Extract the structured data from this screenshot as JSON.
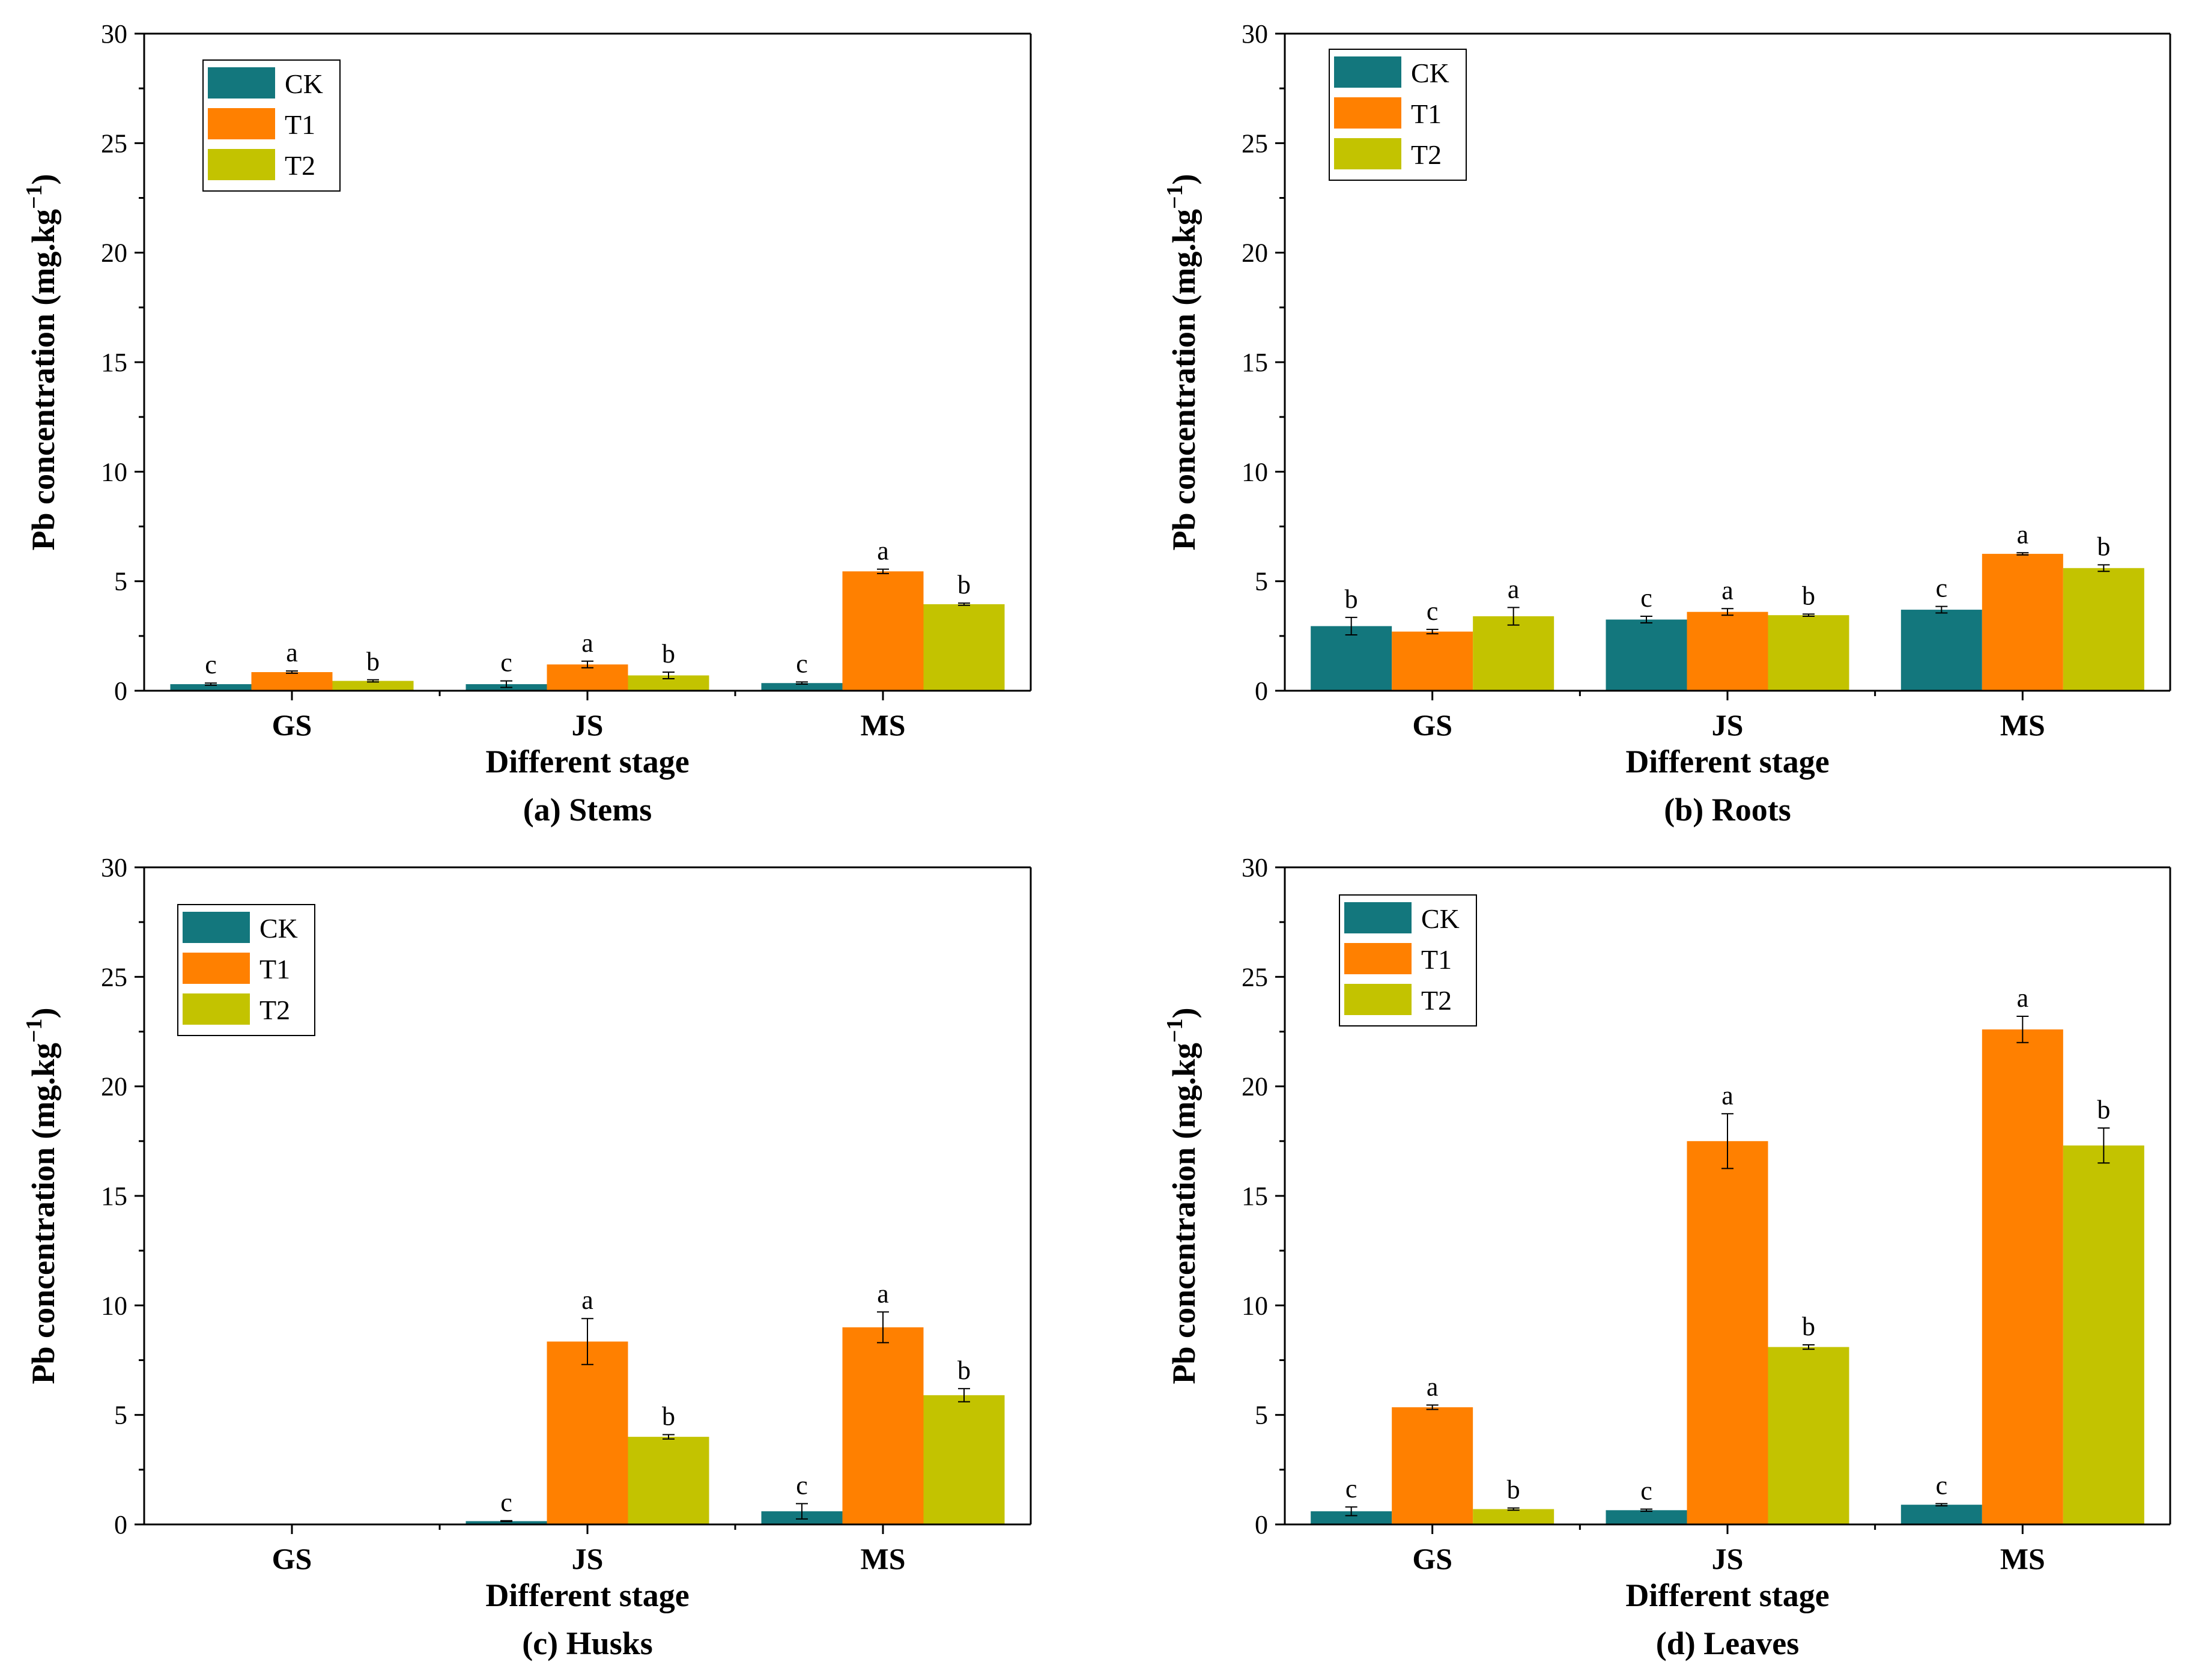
{
  "colors": {
    "CK": "#13777d",
    "T1": "#ff8000",
    "T2": "#c3c300"
  },
  "chart_data": [
    {
      "type": "bar",
      "title": "(a) Stems",
      "xlabel": "Different stage",
      "ylabel": "Pb concentration (mg.kg",
      "ylabel_sup": "−1",
      "ylabel_close": ")",
      "ylim": [
        0,
        30
      ],
      "yticks": [
        "0",
        "5",
        "10",
        "15",
        "20",
        "25",
        "30"
      ],
      "categories": [
        "GS",
        "JS",
        "MS"
      ],
      "legend": {
        "position": "top-left",
        "entries": [
          "CK",
          "T1",
          "T2"
        ]
      },
      "series": [
        {
          "name": "CK",
          "values": [
            0.3,
            0.3,
            0.35
          ],
          "errors": [
            0.05,
            0.15,
            0.05
          ],
          "letters": [
            "c",
            "c",
            "c"
          ]
        },
        {
          "name": "T1",
          "values": [
            0.85,
            1.2,
            5.45
          ],
          "errors": [
            0.05,
            0.15,
            0.1
          ],
          "letters": [
            "a",
            "a",
            "a"
          ]
        },
        {
          "name": "T2",
          "values": [
            0.45,
            0.7,
            3.95
          ],
          "errors": [
            0.05,
            0.15,
            0.05
          ],
          "letters": [
            "b",
            "b",
            "b"
          ]
        }
      ]
    },
    {
      "type": "bar",
      "title": "(b) Roots",
      "xlabel": "Different stage",
      "ylabel": "Pb concentration (mg.kg",
      "ylabel_sup": "−1",
      "ylabel_close": ")",
      "ylim": [
        0,
        30
      ],
      "yticks": [
        "0",
        "5",
        "10",
        "15",
        "20",
        "25",
        "30"
      ],
      "categories": [
        "GS",
        "JS",
        "MS"
      ],
      "legend": {
        "position": "top-left",
        "entries": [
          "CK",
          "T1",
          "T2"
        ]
      },
      "series": [
        {
          "name": "CK",
          "values": [
            2.95,
            3.25,
            3.7
          ],
          "errors": [
            0.4,
            0.15,
            0.15
          ],
          "letters": [
            "b",
            "c",
            "c"
          ]
        },
        {
          "name": "T1",
          "values": [
            2.7,
            3.6,
            6.25
          ],
          "errors": [
            0.1,
            0.15,
            0.05
          ],
          "letters": [
            "c",
            "a",
            "a"
          ]
        },
        {
          "name": "T2",
          "values": [
            3.4,
            3.45,
            5.6
          ],
          "errors": [
            0.4,
            0.05,
            0.15
          ],
          "letters": [
            "a",
            "b",
            "b"
          ]
        }
      ]
    },
    {
      "type": "bar",
      "title": "(c) Husks",
      "xlabel": "Different stage",
      "ylabel": "Pb concentration (mg.kg",
      "ylabel_sup": "−1",
      "ylabel_close": ")",
      "ylim": [
        0,
        30
      ],
      "yticks": [
        "0",
        "5",
        "10",
        "15",
        "20",
        "25",
        "30"
      ],
      "categories": [
        "GS",
        "JS",
        "MS"
      ],
      "legend": {
        "position": "top-left",
        "entries": [
          "CK",
          "T1",
          "T2"
        ]
      },
      "series": [
        {
          "name": "CK",
          "values": [
            0,
            0.15,
            0.6
          ],
          "errors": [
            0,
            0.02,
            0.35
          ],
          "letters": [
            "",
            "c",
            "c"
          ]
        },
        {
          "name": "T1",
          "values": [
            0,
            8.35,
            9.0
          ],
          "errors": [
            0,
            1.05,
            0.7
          ],
          "letters": [
            "",
            "a",
            "a"
          ]
        },
        {
          "name": "T2",
          "values": [
            0,
            4.0,
            5.9
          ],
          "errors": [
            0,
            0.1,
            0.3
          ],
          "letters": [
            "",
            "b",
            "b"
          ]
        }
      ]
    },
    {
      "type": "bar",
      "title": "(d) Leaves",
      "xlabel": "Different stage",
      "ylabel": "Pb concentration (mg.kg",
      "ylabel_sup": "−1",
      "ylabel_close": ")",
      "ylim": [
        0,
        30
      ],
      "yticks": [
        "0",
        "5",
        "10",
        "15",
        "20",
        "25",
        "30"
      ],
      "categories": [
        "GS",
        "JS",
        "MS"
      ],
      "legend": {
        "position": "top-left",
        "entries": [
          "CK",
          "T1",
          "T2"
        ]
      },
      "series": [
        {
          "name": "CK",
          "values": [
            0.6,
            0.65,
            0.9
          ],
          "errors": [
            0.2,
            0.05,
            0.05
          ],
          "letters": [
            "c",
            "c",
            "c"
          ]
        },
        {
          "name": "T1",
          "values": [
            5.35,
            17.5,
            22.6
          ],
          "errors": [
            0.1,
            1.25,
            0.6
          ],
          "letters": [
            "a",
            "a",
            "a"
          ]
        },
        {
          "name": "T2",
          "values": [
            0.7,
            8.1,
            17.3
          ],
          "errors": [
            0.05,
            0.1,
            0.8
          ],
          "letters": [
            "b",
            "b",
            "b"
          ]
        }
      ]
    }
  ]
}
